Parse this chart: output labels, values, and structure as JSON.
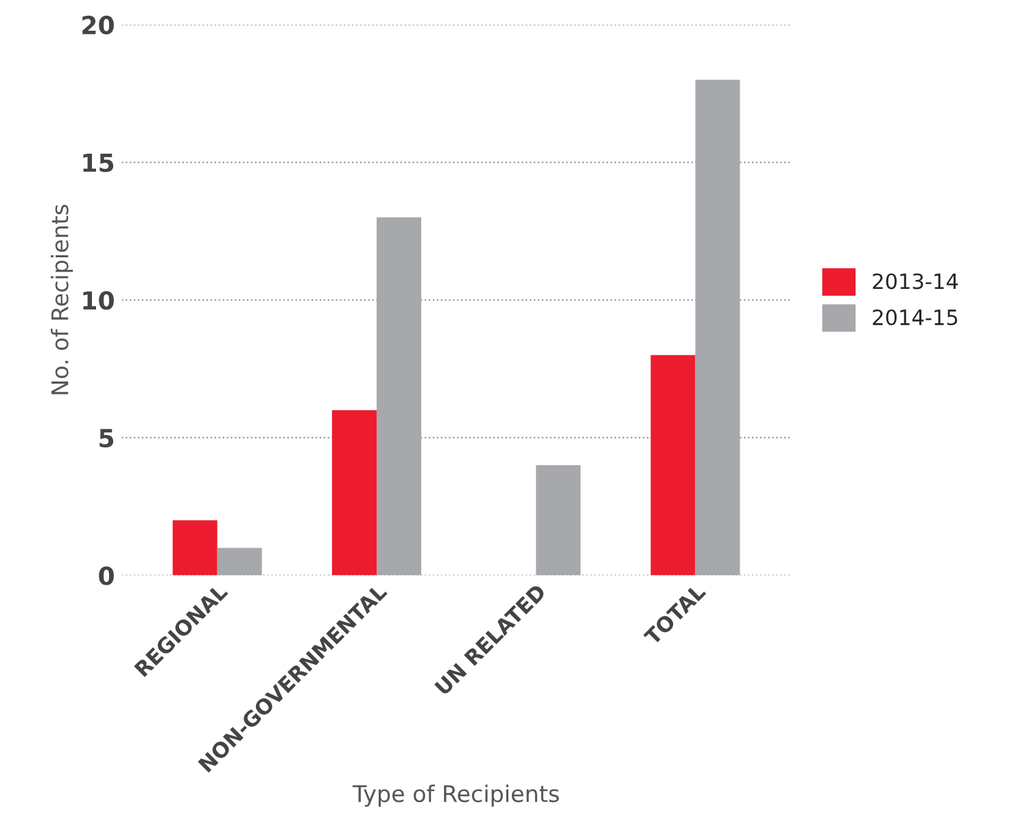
{
  "chart_data": {
    "type": "bar",
    "xlabel": "Type of Recipients",
    "ylabel": "No. of Recipients",
    "categories": [
      "REGIONAL",
      "NON-GOVERNMENTAL",
      "UN RELATED",
      "TOTAL"
    ],
    "series": [
      {
        "name": "2013-14",
        "color": "#ed1c2e",
        "values": [
          2,
          6,
          null,
          8
        ]
      },
      {
        "name": "2014-15",
        "color": "#a7a8ac",
        "values": [
          1,
          13,
          4,
          18
        ]
      }
    ],
    "ylim": [
      0,
      20
    ],
    "yticks": [
      0,
      5,
      10,
      15,
      20
    ],
    "grid": "y",
    "legend": "right"
  }
}
